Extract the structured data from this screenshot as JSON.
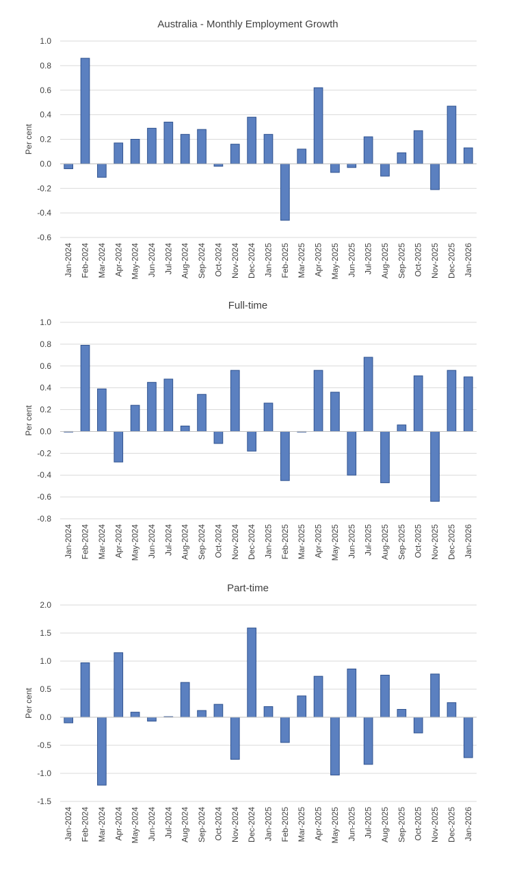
{
  "colors": {
    "bar": "#5b80c0",
    "bar_edge": "#2f528f",
    "grid": "#d9d9d9",
    "text": "#404040"
  },
  "chart_data": [
    {
      "type": "bar",
      "title": "Australia - Monthly Employment Growth",
      "ylabel": "Per cent",
      "xlabel": "",
      "ylim": [
        -0.6,
        1.0
      ],
      "ystep": 0.2,
      "decimals": 1,
      "categories": [
        "Jan-2024",
        "Feb-2024",
        "Mar-2024",
        "Apr-2024",
        "May-2024",
        "Jun-2024",
        "Jul-2024",
        "Aug-2024",
        "Sep-2024",
        "Oct-2024",
        "Nov-2024",
        "Dec-2024",
        "Jan-2025",
        "Feb-2025",
        "Mar-2025",
        "Apr-2025",
        "May-2025",
        "Jun-2025",
        "Jul-2025",
        "Aug-2025",
        "Sep-2025",
        "Oct-2025",
        "Nov-2025",
        "Dec-2025",
        "Jan-2026"
      ],
      "values": [
        -0.04,
        0.86,
        -0.11,
        0.17,
        0.2,
        0.29,
        0.34,
        0.24,
        0.28,
        -0.02,
        0.16,
        0.38,
        0.24,
        -0.46,
        0.12,
        0.62,
        -0.07,
        -0.03,
        0.22,
        -0.1,
        0.09,
        0.27,
        -0.21,
        0.47,
        0.13
      ]
    },
    {
      "type": "bar",
      "title": "Full-time",
      "ylabel": "Per cent",
      "xlabel": "",
      "ylim": [
        -0.8,
        1.0
      ],
      "ystep": 0.2,
      "decimals": 1,
      "categories": [
        "Jan-2024",
        "Feb-2024",
        "Mar-2024",
        "Apr-2024",
        "May-2024",
        "Jun-2024",
        "Jul-2024",
        "Aug-2024",
        "Sep-2024",
        "Oct-2024",
        "Nov-2024",
        "Dec-2024",
        "Jan-2025",
        "Feb-2025",
        "Mar-2025",
        "Apr-2025",
        "May-2025",
        "Jun-2025",
        "Jul-2025",
        "Aug-2025",
        "Sep-2025",
        "Oct-2025",
        "Nov-2025",
        "Dec-2025",
        "Jan-2026"
      ],
      "values": [
        0.0,
        0.79,
        0.39,
        -0.28,
        0.24,
        0.45,
        0.48,
        0.05,
        0.34,
        -0.11,
        0.56,
        -0.18,
        0.26,
        -0.45,
        0.0,
        0.56,
        0.36,
        -0.4,
        0.68,
        -0.47,
        0.06,
        0.51,
        -0.64,
        0.56,
        0.5
      ]
    },
    {
      "type": "bar",
      "title": "Part-time",
      "ylabel": "Per cent",
      "xlabel": "",
      "ylim": [
        -1.5,
        2.0
      ],
      "ystep": 0.5,
      "decimals": 1,
      "categories": [
        "Jan-2024",
        "Feb-2024",
        "Mar-2024",
        "Apr-2024",
        "May-2024",
        "Jun-2024",
        "Jul-2024",
        "Aug-2024",
        "Sep-2024",
        "Oct-2024",
        "Nov-2024",
        "Dec-2024",
        "Jan-2025",
        "Feb-2025",
        "Mar-2025",
        "Apr-2025",
        "May-2025",
        "Jun-2025",
        "Jul-2025",
        "Aug-2025",
        "Sep-2025",
        "Oct-2025",
        "Nov-2025",
        "Dec-2025",
        "Jan-2026"
      ],
      "values": [
        -0.1,
        0.97,
        -1.21,
        1.15,
        0.09,
        -0.07,
        0.01,
        0.62,
        0.12,
        0.23,
        -0.75,
        1.59,
        0.19,
        -0.45,
        0.38,
        0.73,
        -1.03,
        0.86,
        -0.84,
        0.75,
        0.14,
        -0.28,
        0.77,
        0.26,
        -0.72
      ]
    }
  ]
}
